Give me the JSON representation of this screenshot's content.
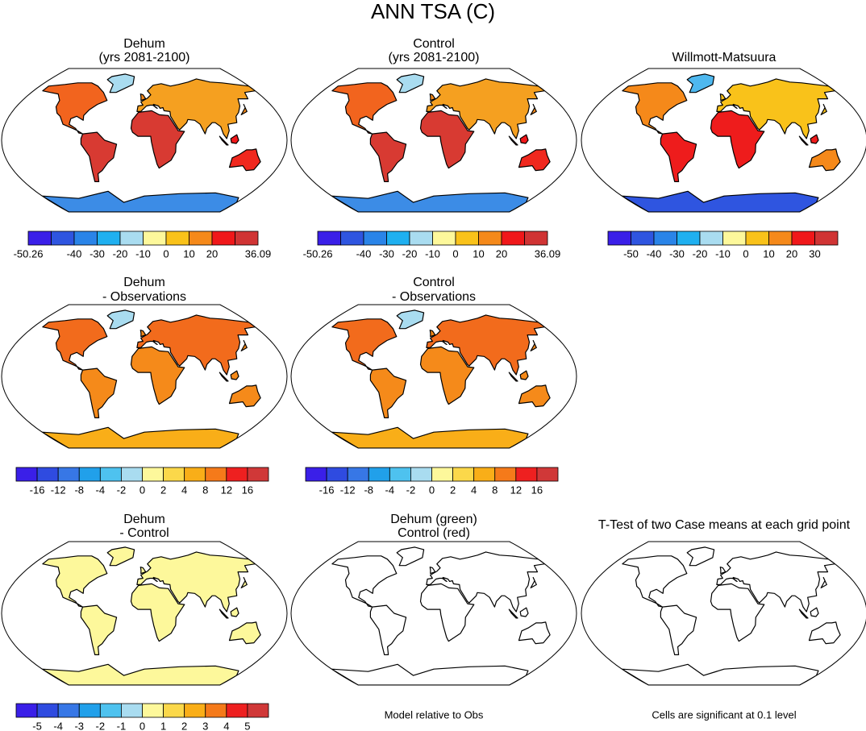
{
  "title": "ANN TSA (C)",
  "panels": [
    {
      "title": [
        "Dehum",
        "(yrs 2081-2100)"
      ],
      "colorbar": {
        "colors": [
          "#3a1fe8",
          "#2f55e0",
          "#2a84e8",
          "#1fb0f0",
          "#a9dcf0",
          "#fdf89b",
          "#f9c21a",
          "#f5891a",
          "#f0181a",
          "#d03434"
        ],
        "labels": [
          "-50.26",
          null,
          "-40",
          "-30",
          "-20",
          "-10",
          "0",
          "10",
          "20",
          null,
          "36.09"
        ]
      }
    },
    {
      "title": [
        "Control",
        "(yrs 2081-2100)"
      ],
      "colorbar": {
        "colors": [
          "#3a1fe8",
          "#2f55e0",
          "#2a84e8",
          "#1fb0f0",
          "#a9dcf0",
          "#fdf89b",
          "#f9c21a",
          "#f5891a",
          "#f0181a",
          "#d03434"
        ],
        "labels": [
          "-50.26",
          null,
          "-40",
          "-30",
          "-20",
          "-10",
          "0",
          "10",
          "20",
          null,
          "36.09"
        ]
      }
    },
    {
      "title": [
        "Willmott-Matsuura"
      ],
      "colorbar": {
        "colors": [
          "#3a1fe8",
          "#2f55e0",
          "#2a84e8",
          "#1fb0f0",
          "#a9dcf0",
          "#fdf89b",
          "#f9c21a",
          "#f5891a",
          "#f0181a",
          "#d03434"
        ],
        "labels": [
          null,
          "-50",
          "-40",
          "-30",
          "-20",
          "-10",
          "0",
          "10",
          "20",
          "30",
          null
        ]
      }
    },
    {
      "title": [
        "Dehum",
        "- Observations"
      ],
      "colorbar": {
        "colors": [
          "#3a1fe8",
          "#2f4be0",
          "#3777e6",
          "#21a0ea",
          "#4ec2ef",
          "#a9dcf0",
          "#fdf89b",
          "#fbd84a",
          "#f9ae18",
          "#f57a1a",
          "#ee2020",
          "#d03838"
        ],
        "labels": [
          null,
          "-16",
          "-12",
          "-8",
          "-4",
          "-2",
          "0",
          "2",
          "4",
          "8",
          "12",
          "16",
          null
        ]
      }
    },
    {
      "title": [
        "Control",
        "- Observations"
      ],
      "colorbar": {
        "colors": [
          "#3a1fe8",
          "#2f4be0",
          "#3777e6",
          "#21a0ea",
          "#4ec2ef",
          "#a9dcf0",
          "#fdf89b",
          "#fbd84a",
          "#f9ae18",
          "#f57a1a",
          "#ee2020",
          "#d03838"
        ],
        "labels": [
          null,
          "-16",
          "-12",
          "-8",
          "-4",
          "-2",
          "0",
          "2",
          "4",
          "8",
          "12",
          "16",
          null
        ]
      }
    },
    {
      "title": [
        "Dehum",
        "- Control"
      ],
      "colorbar": {
        "colors": [
          "#3a1fe8",
          "#2f4be0",
          "#3777e6",
          "#21a0ea",
          "#4ec2ef",
          "#a9dcf0",
          "#fdf89b",
          "#fbd84a",
          "#f9ae18",
          "#f57a1a",
          "#ee2020",
          "#d03838"
        ],
        "labels": [
          null,
          "-5",
          "-4",
          "-3",
          "-2",
          "-1",
          "0",
          "1",
          "2",
          "3",
          "4",
          "5",
          null
        ]
      }
    },
    {
      "title": [
        "Dehum (green)",
        "Control (red)"
      ],
      "footnote": "Model relative to Obs"
    },
    {
      "title": [
        "T-Test of two Case means at each grid point"
      ],
      "footnote": "Cells are significant at 0.1 level"
    }
  ]
}
